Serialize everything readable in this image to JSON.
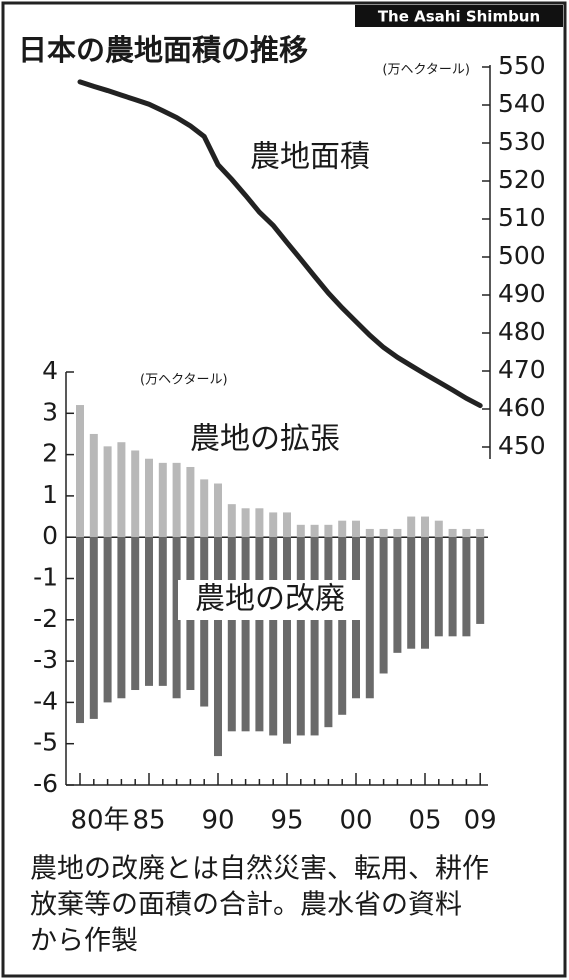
{
  "credit": "The Asahi Shimbun",
  "note": [
    "農地の改廃とは自然災害、転用、耕作",
    "放棄等の面積の合計。農水省の資料",
    "から作製"
  ],
  "chart_data": [
    {
      "type": "line",
      "title": "日本の農地面積の推移",
      "y_label": "(万ヘクタール)",
      "y_axis_side": "right",
      "categories": [
        "80年",
        null,
        null,
        null,
        null,
        "85",
        null,
        null,
        null,
        null,
        "90",
        null,
        null,
        null,
        null,
        "95",
        null,
        null,
        null,
        null,
        "00",
        null,
        null,
        null,
        null,
        "05",
        null,
        null,
        null,
        "09"
      ],
      "series": [
        {
          "name": "農地面積",
          "color": "#222222",
          "values": [
            546.1,
            544.9,
            543.8,
            542.6,
            541.4,
            540.2,
            538.5,
            536.7,
            534.5,
            531.7,
            524.3,
            520.4,
            516.2,
            511.8,
            508.3,
            503.8,
            499.4,
            494.9,
            490.5,
            486.6,
            483.0,
            479.4,
            476.2,
            473.6,
            471.4,
            469.2,
            467.1,
            465.0,
            462.8,
            460.9
          ]
        }
      ],
      "ylim": [
        450,
        550
      ],
      "yticks": [
        550,
        540,
        530,
        520,
        510,
        500,
        490,
        480,
        470,
        460,
        450
      ]
    },
    {
      "type": "bar",
      "y_label": "(万ヘクタール)",
      "categories": [
        "80年",
        null,
        null,
        null,
        null,
        "85",
        null,
        null,
        null,
        null,
        "90",
        null,
        null,
        null,
        null,
        "95",
        null,
        null,
        null,
        null,
        "00",
        null,
        null,
        null,
        null,
        "05",
        null,
        null,
        null,
        "09"
      ],
      "series": [
        {
          "name": "農地の拡張",
          "color": "#b8b8b8",
          "values": [
            3.2,
            2.5,
            2.2,
            2.3,
            2.1,
            1.9,
            1.8,
            1.8,
            1.7,
            1.4,
            1.3,
            0.8,
            0.7,
            0.7,
            0.6,
            0.6,
            0.3,
            0.3,
            0.3,
            0.4,
            0.4,
            0.2,
            0.2,
            0.2,
            0.5,
            0.5,
            0.4,
            0.2,
            0.2,
            0.2
          ]
        },
        {
          "name": "農地の改廃",
          "color": "#6a6a6a",
          "values": [
            -4.5,
            -4.4,
            -4.0,
            -3.9,
            -3.7,
            -3.6,
            -3.6,
            -3.9,
            -3.7,
            -4.1,
            -5.3,
            -4.7,
            -4.7,
            -4.7,
            -4.8,
            -5.0,
            -4.8,
            -4.8,
            -4.6,
            -4.3,
            -3.9,
            -3.9,
            -3.3,
            -2.8,
            -2.7,
            -2.7,
            -2.4,
            -2.4,
            -2.4,
            -2.1
          ]
        }
      ],
      "ylim": [
        -6,
        4
      ],
      "yticks": [
        4,
        3,
        2,
        1,
        0,
        -1,
        -2,
        -3,
        -4,
        -5,
        -6
      ]
    }
  ]
}
